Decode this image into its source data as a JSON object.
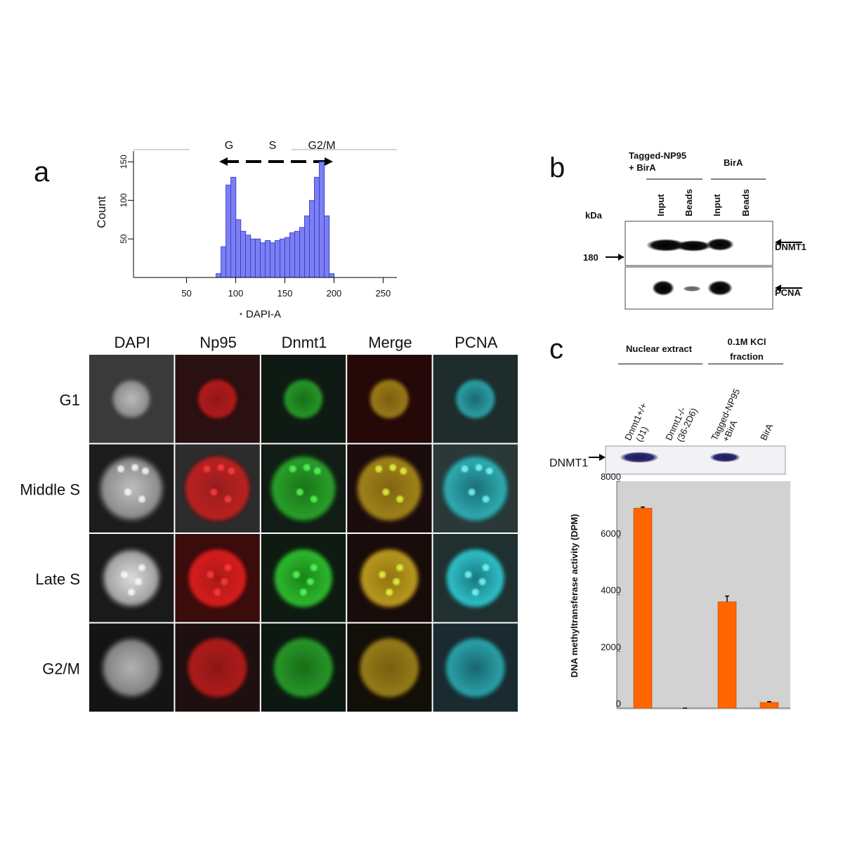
{
  "panel_labels": [
    "a",
    "b",
    "c"
  ],
  "chart_data": [
    {
      "type": "histogram",
      "xlabel": "DAPI-A",
      "ylabel": "Count",
      "color": "#7b7ff2",
      "edge_color": "#2d34c8",
      "bins": [
        80,
        85,
        90,
        95,
        100,
        105,
        110,
        115,
        120,
        125,
        130,
        135,
        140,
        145,
        150,
        155,
        160,
        165,
        170,
        175,
        180,
        185,
        190,
        195,
        200
      ],
      "values": [
        5,
        40,
        120,
        130,
        75,
        60,
        55,
        50,
        50,
        45,
        48,
        45,
        48,
        50,
        52,
        58,
        60,
        65,
        80,
        100,
        130,
        150,
        80,
        5
      ],
      "xlim": [
        -4,
        264
      ],
      "ylim": [
        0,
        164
      ],
      "xticks": [
        50,
        100,
        150,
        200,
        250
      ],
      "yticks": [
        50,
        100,
        150
      ],
      "annotations": [
        "G",
        "S",
        "G2/M"
      ]
    },
    {
      "type": "bar",
      "ylabel": "DNA methyltransferase activity (DPM)",
      "color": "#ff6600",
      "values": [
        7050,
        0,
        3750,
        200
      ],
      "errors": [
        40,
        0,
        200,
        30
      ],
      "ylim": [
        0,
        8000
      ],
      "yticks": [
        0,
        2000,
        4000,
        6000,
        8000
      ]
    }
  ],
  "microscopy": {
    "columns": [
      "DAPI",
      "Np95",
      "Dnmt1",
      "Merge",
      "PCNA"
    ],
    "rows": [
      "G1",
      "Middle S",
      "Late S",
      "G2/M"
    ]
  },
  "blot_b": {
    "groups": [
      [
        "Tagged-NP95",
        "+ BirA"
      ],
      [
        "BirA"
      ]
    ],
    "lanes": [
      "Input",
      "Beads",
      "Input",
      "Beads"
    ],
    "unit": "kDa",
    "marker": 180,
    "bands": [
      "DNMT1",
      "PCNA"
    ]
  },
  "blot_c": {
    "groups": [
      [
        "Nuclear extract"
      ],
      [
        "0.1M KCl",
        "fraction"
      ]
    ],
    "lanes": [
      [
        "Dnmt1+/+",
        "(J1)"
      ],
      [
        "Dnmt1-/-",
        "(36-2D6)"
      ],
      [
        "Tagged-NP95",
        "+BirA"
      ],
      [
        "BirA"
      ]
    ],
    "band": "DNMT1"
  }
}
